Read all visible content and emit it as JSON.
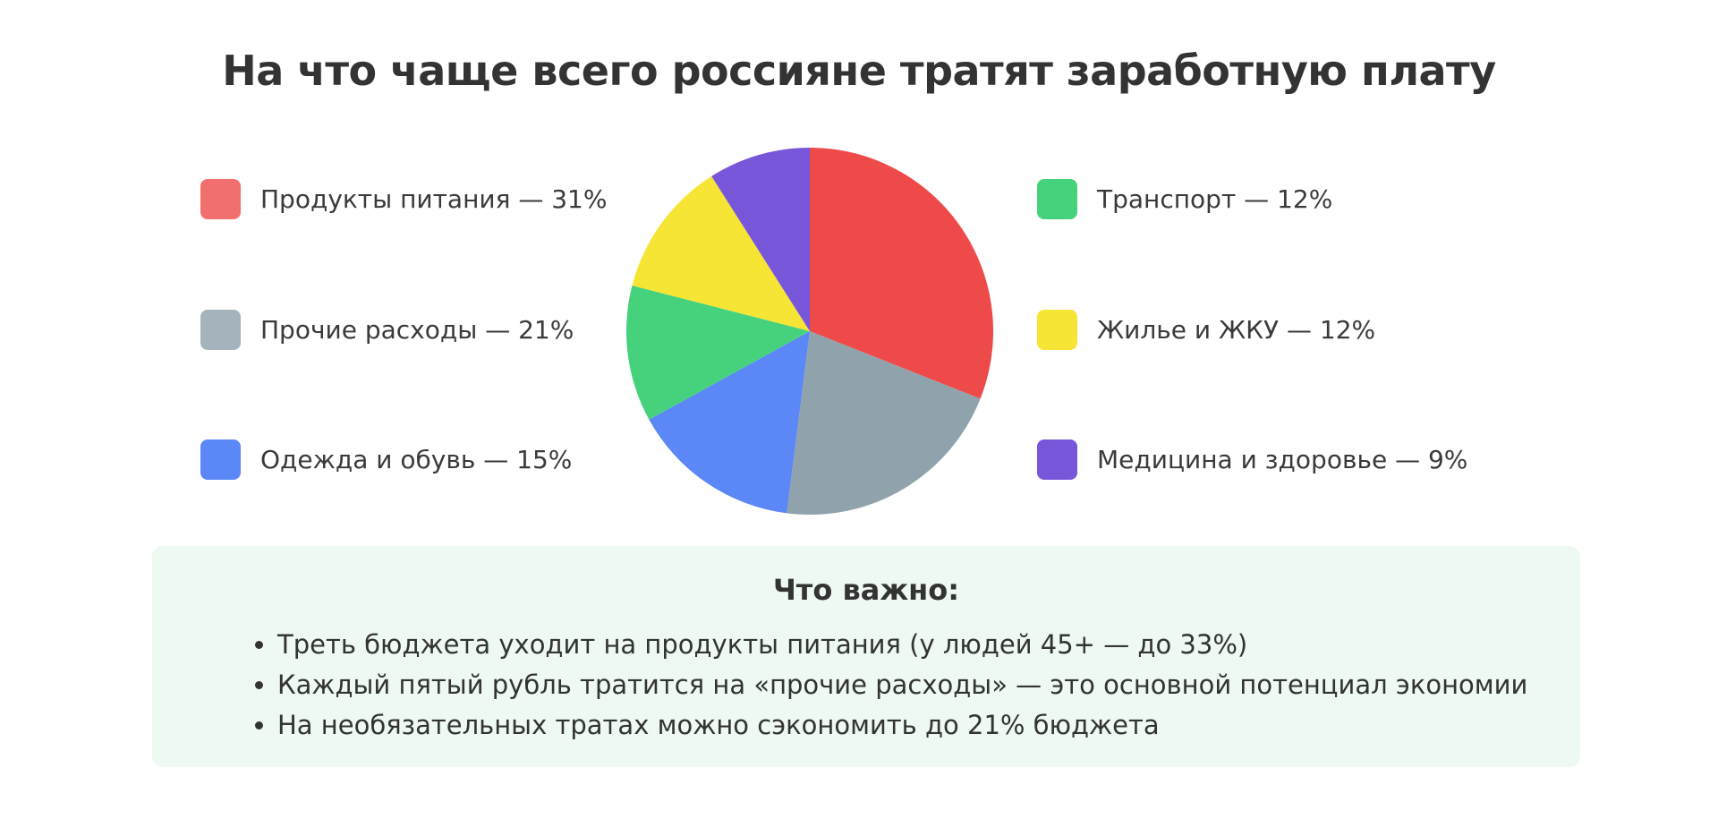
{
  "chart_data": {
    "type": "pie",
    "title": "На что чаще всего россияне тратят заработную плату",
    "slices": [
      {
        "label": "Продукты питания — 31%",
        "value": 31,
        "color": "#ef4a4a"
      },
      {
        "label": "Прочие расходы — 21%",
        "value": 21,
        "color": "#90a3ad"
      },
      {
        "label": "Одежда и обувь — 15%",
        "value": 15,
        "color": "#5b87f7"
      },
      {
        "label": "Транспорт — 12%",
        "value": 12,
        "color": "#46d27c"
      },
      {
        "label": "Жилье и ЖКУ — 12%",
        "value": 12,
        "color": "#f6e535"
      },
      {
        "label": "Медицина и здоровье — 9%",
        "value": 9,
        "color": "#7856da"
      }
    ],
    "legend": {
      "left": [
        0,
        1,
        2
      ],
      "right": [
        3,
        4,
        5
      ],
      "swatch_colors": [
        "#f26f6f",
        "#a5b4bc",
        "#5b87f7",
        "#46d27c",
        "#f6e535",
        "#7856da"
      ]
    }
  },
  "notes": {
    "heading": "Что важно:",
    "items": [
      "Треть бюджета уходит на продукты питания (у людей 45+ — до 33%)",
      "Каждый пятый рубль тратится на «прочие расходы» — это основной потенциал экономии",
      "На необязательных тратах можно сэкономить до 21% бюджета"
    ],
    "background": "#edf9f1"
  }
}
